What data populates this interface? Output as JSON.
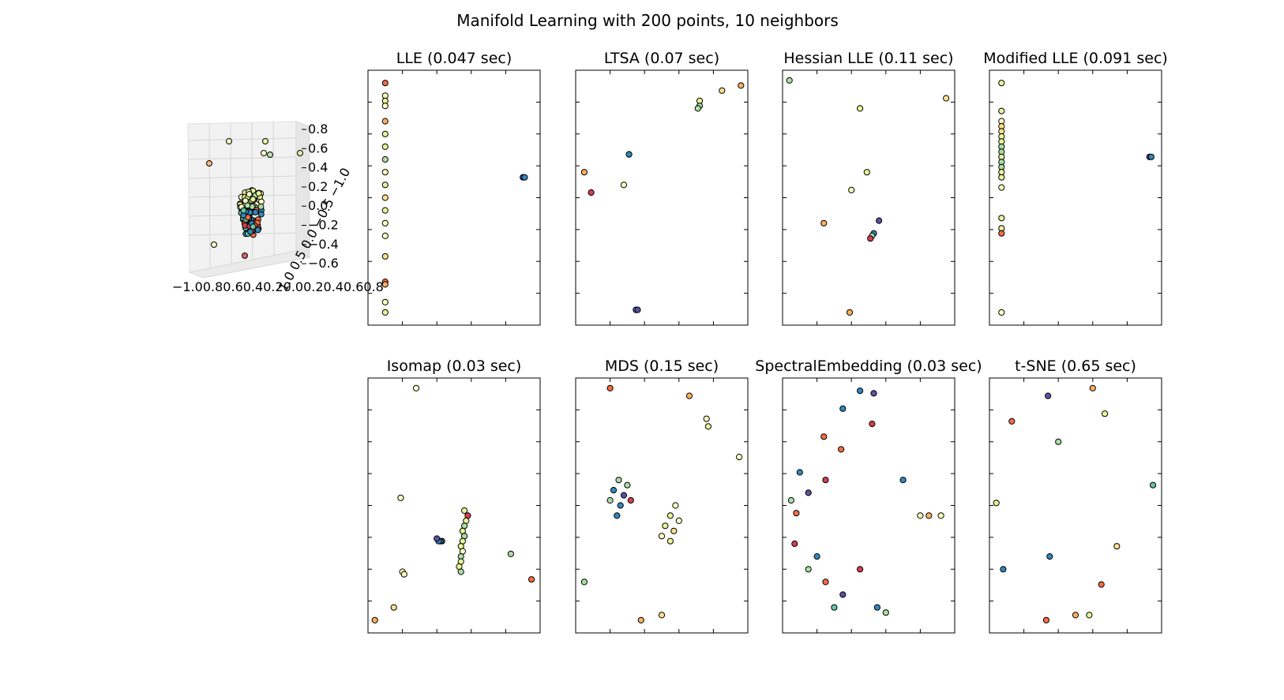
{
  "figure": {
    "title": "Manifold Learning with 200 points, 10 neighbors",
    "background": "#ffffff"
  },
  "palette": [
    "#9e0142",
    "#d53e4f",
    "#f46d43",
    "#fdae61",
    "#fee08b",
    "#ffffbf",
    "#e6f598",
    "#abdda4",
    "#66c2a5",
    "#3288bd",
    "#5e4fa2"
  ],
  "axes3d": {
    "z_ticks": [
      "0.8",
      "0.6",
      "0.4",
      "0.2",
      "0.0",
      "−0.2",
      "−0.4",
      "−0.6"
    ],
    "x_ticklabels": "−1.00.80.60.40.20.00.20.40.60.8",
    "y_ticklabels": "1.0 0.5 0.0 −0.5 −1.0"
  },
  "chart_data": [
    {
      "type": "scatter",
      "title": "LLE (0.047 sec)",
      "xlim": [
        0,
        1
      ],
      "ylim": [
        0,
        1
      ],
      "axis_tick_labels": "hidden",
      "points": [
        {
          "x": 0.1,
          "y": 0.95,
          "c": 0.15
        },
        {
          "x": 0.1,
          "y": 0.9,
          "c": 0.5
        },
        {
          "x": 0.1,
          "y": 0.88,
          "c": 0.55
        },
        {
          "x": 0.1,
          "y": 0.86,
          "c": 0.45
        },
        {
          "x": 0.1,
          "y": 0.8,
          "c": 0.3
        },
        {
          "x": 0.1,
          "y": 0.75,
          "c": 0.6
        },
        {
          "x": 0.1,
          "y": 0.7,
          "c": 0.55
        },
        {
          "x": 0.1,
          "y": 0.65,
          "c": 0.65
        },
        {
          "x": 0.1,
          "y": 0.6,
          "c": 0.5
        },
        {
          "x": 0.1,
          "y": 0.55,
          "c": 0.62
        },
        {
          "x": 0.1,
          "y": 0.5,
          "c": 0.4
        },
        {
          "x": 0.1,
          "y": 0.45,
          "c": 0.55
        },
        {
          "x": 0.1,
          "y": 0.4,
          "c": 0.5
        },
        {
          "x": 0.1,
          "y": 0.35,
          "c": 0.45
        },
        {
          "x": 0.1,
          "y": 0.27,
          "c": 0.35
        },
        {
          "x": 0.1,
          "y": 0.17,
          "c": 0.2
        },
        {
          "x": 0.1,
          "y": 0.16,
          "c": 0.3
        },
        {
          "x": 0.1,
          "y": 0.09,
          "c": 0.5
        },
        {
          "x": 0.1,
          "y": 0.05,
          "c": 0.55
        },
        {
          "x": 0.9,
          "y": 0.58,
          "c": 0.95
        },
        {
          "x": 0.91,
          "y": 0.58,
          "c": 0.85
        }
      ]
    },
    {
      "type": "scatter",
      "title": "LTSA (0.07 sec)",
      "xlim": [
        0,
        1
      ],
      "ylim": [
        0,
        1
      ],
      "axis_tick_labels": "hidden",
      "points": [
        {
          "x": 0.96,
          "y": 0.94,
          "c": 0.25
        },
        {
          "x": 0.85,
          "y": 0.92,
          "c": 0.35
        },
        {
          "x": 0.72,
          "y": 0.88,
          "c": 0.55
        },
        {
          "x": 0.72,
          "y": 0.86,
          "c": 0.65
        },
        {
          "x": 0.71,
          "y": 0.85,
          "c": 0.7
        },
        {
          "x": 0.31,
          "y": 0.67,
          "c": 0.65
        },
        {
          "x": 0.31,
          "y": 0.67,
          "c": 0.85
        },
        {
          "x": 0.05,
          "y": 0.6,
          "c": 0.3
        },
        {
          "x": 0.28,
          "y": 0.55,
          "c": 0.5
        },
        {
          "x": 0.09,
          "y": 0.52,
          "c": 0.12
        },
        {
          "x": 0.35,
          "y": 0.06,
          "c": 0.9
        },
        {
          "x": 0.36,
          "y": 0.06,
          "c": 0.95
        }
      ]
    },
    {
      "type": "scatter",
      "title": "Hessian LLE (0.11 sec)",
      "xlim": [
        0,
        1
      ],
      "ylim": [
        0,
        1
      ],
      "axis_tick_labels": "hidden",
      "points": [
        {
          "x": 0.04,
          "y": 0.96,
          "c": 0.7
        },
        {
          "x": 0.95,
          "y": 0.89,
          "c": 0.35
        },
        {
          "x": 0.45,
          "y": 0.85,
          "c": 0.55
        },
        {
          "x": 0.49,
          "y": 0.6,
          "c": 0.6
        },
        {
          "x": 0.4,
          "y": 0.53,
          "c": 0.5
        },
        {
          "x": 0.24,
          "y": 0.4,
          "c": 0.25
        },
        {
          "x": 0.56,
          "y": 0.41,
          "c": 0.95
        },
        {
          "x": 0.53,
          "y": 0.36,
          "c": 0.85
        },
        {
          "x": 0.52,
          "y": 0.35,
          "c": 0.7
        },
        {
          "x": 0.51,
          "y": 0.34,
          "c": 0.12
        },
        {
          "x": 0.39,
          "y": 0.05,
          "c": 0.3
        }
      ]
    },
    {
      "type": "scatter",
      "title": "Modified LLE (0.091 sec)",
      "xlim": [
        0,
        1
      ],
      "ylim": [
        0,
        1
      ],
      "axis_tick_labels": "hidden",
      "points": [
        {
          "x": 0.07,
          "y": 0.95,
          "c": 0.55
        },
        {
          "x": 0.07,
          "y": 0.84,
          "c": 0.6
        },
        {
          "x": 0.07,
          "y": 0.8,
          "c": 0.5
        },
        {
          "x": 0.07,
          "y": 0.78,
          "c": 0.35
        },
        {
          "x": 0.07,
          "y": 0.76,
          "c": 0.4
        },
        {
          "x": 0.07,
          "y": 0.74,
          "c": 0.6
        },
        {
          "x": 0.07,
          "y": 0.72,
          "c": 0.55
        },
        {
          "x": 0.07,
          "y": 0.7,
          "c": 0.65
        },
        {
          "x": 0.07,
          "y": 0.68,
          "c": 0.7
        },
        {
          "x": 0.07,
          "y": 0.66,
          "c": 0.6
        },
        {
          "x": 0.07,
          "y": 0.64,
          "c": 0.65
        },
        {
          "x": 0.07,
          "y": 0.62,
          "c": 0.7
        },
        {
          "x": 0.07,
          "y": 0.6,
          "c": 0.6
        },
        {
          "x": 0.07,
          "y": 0.58,
          "c": 0.55
        },
        {
          "x": 0.07,
          "y": 0.54,
          "c": 0.5
        },
        {
          "x": 0.07,
          "y": 0.42,
          "c": 0.6
        },
        {
          "x": 0.07,
          "y": 0.38,
          "c": 0.55
        },
        {
          "x": 0.07,
          "y": 0.36,
          "c": 0.15
        },
        {
          "x": 0.07,
          "y": 0.05,
          "c": 0.5
        },
        {
          "x": 0.93,
          "y": 0.66,
          "c": 0.95
        },
        {
          "x": 0.94,
          "y": 0.66,
          "c": 0.85
        }
      ]
    },
    {
      "type": "scatter",
      "title": "Isomap (0.03 sec)",
      "xlim": [
        0,
        1
      ],
      "ylim": [
        0,
        1
      ],
      "axis_tick_labels": "hidden",
      "points": [
        {
          "x": 0.28,
          "y": 0.96,
          "c": 0.45
        },
        {
          "x": 0.19,
          "y": 0.53,
          "c": 0.5
        },
        {
          "x": 0.2,
          "y": 0.24,
          "c": 0.45
        },
        {
          "x": 0.21,
          "y": 0.23,
          "c": 0.5
        },
        {
          "x": 0.15,
          "y": 0.1,
          "c": 0.35
        },
        {
          "x": 0.04,
          "y": 0.05,
          "c": 0.25
        },
        {
          "x": 0.83,
          "y": 0.31,
          "c": 0.7
        },
        {
          "x": 0.95,
          "y": 0.21,
          "c": 0.15
        },
        {
          "x": 0.56,
          "y": 0.48,
          "c": 0.6
        },
        {
          "x": 0.58,
          "y": 0.46,
          "c": 0.1
        },
        {
          "x": 0.57,
          "y": 0.44,
          "c": 0.55
        },
        {
          "x": 0.56,
          "y": 0.42,
          "c": 0.65
        },
        {
          "x": 0.55,
          "y": 0.4,
          "c": 0.6
        },
        {
          "x": 0.56,
          "y": 0.38,
          "c": 0.7
        },
        {
          "x": 0.55,
          "y": 0.36,
          "c": 0.55
        },
        {
          "x": 0.54,
          "y": 0.34,
          "c": 0.6
        },
        {
          "x": 0.55,
          "y": 0.32,
          "c": 0.5
        },
        {
          "x": 0.54,
          "y": 0.3,
          "c": 0.65
        },
        {
          "x": 0.54,
          "y": 0.28,
          "c": 0.6
        },
        {
          "x": 0.53,
          "y": 0.26,
          "c": 0.55
        },
        {
          "x": 0.54,
          "y": 0.24,
          "c": 0.7
        },
        {
          "x": 0.43,
          "y": 0.36,
          "c": 0.95
        },
        {
          "x": 0.42,
          "y": 0.36,
          "c": 0.9
        },
        {
          "x": 0.41,
          "y": 0.36,
          "c": 0.85
        },
        {
          "x": 0.4,
          "y": 0.37,
          "c": 0.95
        }
      ]
    },
    {
      "type": "scatter",
      "title": "MDS (0.15 sec)",
      "xlim": [
        0,
        1
      ],
      "ylim": [
        0,
        1
      ],
      "axis_tick_labels": "hidden",
      "points": [
        {
          "x": 0.2,
          "y": 0.96,
          "c": 0.15
        },
        {
          "x": 0.66,
          "y": 0.93,
          "c": 0.25
        },
        {
          "x": 0.76,
          "y": 0.84,
          "c": 0.5
        },
        {
          "x": 0.77,
          "y": 0.81,
          "c": 0.55
        },
        {
          "x": 0.95,
          "y": 0.69,
          "c": 0.5
        },
        {
          "x": 0.05,
          "y": 0.2,
          "c": 0.7
        },
        {
          "x": 0.38,
          "y": 0.05,
          "c": 0.3
        },
        {
          "x": 0.5,
          "y": 0.07,
          "c": 0.35
        },
        {
          "x": 0.22,
          "y": 0.56,
          "c": 0.9
        },
        {
          "x": 0.25,
          "y": 0.6,
          "c": 0.7
        },
        {
          "x": 0.28,
          "y": 0.54,
          "c": 0.95
        },
        {
          "x": 0.3,
          "y": 0.58,
          "c": 0.65
        },
        {
          "x": 0.26,
          "y": 0.5,
          "c": 0.85
        },
        {
          "x": 0.2,
          "y": 0.52,
          "c": 0.7
        },
        {
          "x": 0.32,
          "y": 0.52,
          "c": 0.1
        },
        {
          "x": 0.24,
          "y": 0.46,
          "c": 0.9
        },
        {
          "x": 0.58,
          "y": 0.5,
          "c": 0.5
        },
        {
          "x": 0.55,
          "y": 0.46,
          "c": 0.55
        },
        {
          "x": 0.6,
          "y": 0.44,
          "c": 0.45
        },
        {
          "x": 0.52,
          "y": 0.42,
          "c": 0.6
        },
        {
          "x": 0.57,
          "y": 0.4,
          "c": 0.35
        },
        {
          "x": 0.5,
          "y": 0.38,
          "c": 0.5
        },
        {
          "x": 0.55,
          "y": 0.36,
          "c": 0.55
        }
      ]
    },
    {
      "type": "scatter",
      "title": "SpectralEmbedding (0.03 sec)",
      "xlim": [
        0,
        1
      ],
      "ylim": [
        0,
        1
      ],
      "axis_tick_labels": "hidden",
      "points": [
        {
          "x": 0.45,
          "y": 0.95,
          "c": 0.9
        },
        {
          "x": 0.53,
          "y": 0.94,
          "c": 0.95
        },
        {
          "x": 0.35,
          "y": 0.88,
          "c": 0.85
        },
        {
          "x": 0.52,
          "y": 0.82,
          "c": 0.1
        },
        {
          "x": 0.24,
          "y": 0.77,
          "c": 0.15
        },
        {
          "x": 0.34,
          "y": 0.72,
          "c": 0.2
        },
        {
          "x": 0.1,
          "y": 0.63,
          "c": 0.9
        },
        {
          "x": 0.25,
          "y": 0.6,
          "c": 0.1
        },
        {
          "x": 0.15,
          "y": 0.55,
          "c": 0.95
        },
        {
          "x": 0.05,
          "y": 0.52,
          "c": 0.7
        },
        {
          "x": 0.08,
          "y": 0.47,
          "c": 0.15
        },
        {
          "x": 0.7,
          "y": 0.6,
          "c": 0.85
        },
        {
          "x": 0.8,
          "y": 0.46,
          "c": 0.45
        },
        {
          "x": 0.85,
          "y": 0.46,
          "c": 0.3
        },
        {
          "x": 0.92,
          "y": 0.46,
          "c": 0.5
        },
        {
          "x": 0.07,
          "y": 0.35,
          "c": 0.1
        },
        {
          "x": 0.2,
          "y": 0.3,
          "c": 0.9
        },
        {
          "x": 0.15,
          "y": 0.25,
          "c": 0.7
        },
        {
          "x": 0.25,
          "y": 0.2,
          "c": 0.15
        },
        {
          "x": 0.35,
          "y": 0.15,
          "c": 0.95
        },
        {
          "x": 0.55,
          "y": 0.1,
          "c": 0.85
        },
        {
          "x": 0.6,
          "y": 0.08,
          "c": 0.7
        },
        {
          "x": 0.45,
          "y": 0.25,
          "c": 0.1
        },
        {
          "x": 0.3,
          "y": 0.1,
          "c": 0.8
        }
      ]
    },
    {
      "type": "scatter",
      "title": "t-SNE (0.65 sec)",
      "xlim": [
        0,
        1
      ],
      "ylim": [
        0,
        1
      ],
      "axis_tick_labels": "hidden",
      "points": [
        {
          "x": 0.6,
          "y": 0.96,
          "c": 0.3
        },
        {
          "x": 0.34,
          "y": 0.93,
          "c": 0.95
        },
        {
          "x": 0.67,
          "y": 0.86,
          "c": 0.6
        },
        {
          "x": 0.13,
          "y": 0.83,
          "c": 0.15
        },
        {
          "x": 0.95,
          "y": 0.58,
          "c": 0.75
        },
        {
          "x": 0.04,
          "y": 0.51,
          "c": 0.6
        },
        {
          "x": 0.08,
          "y": 0.25,
          "c": 0.9
        },
        {
          "x": 0.33,
          "y": 0.05,
          "c": 0.15
        },
        {
          "x": 0.5,
          "y": 0.07,
          "c": 0.3
        },
        {
          "x": 0.58,
          "y": 0.07,
          "c": 0.6
        },
        {
          "x": 0.74,
          "y": 0.34,
          "c": 0.35
        },
        {
          "x": 0.65,
          "y": 0.19,
          "c": 0.15
        },
        {
          "x": 0.35,
          "y": 0.3,
          "c": 0.9
        },
        {
          "x": 0.4,
          "y": 0.75,
          "c": 0.65
        }
      ]
    }
  ]
}
